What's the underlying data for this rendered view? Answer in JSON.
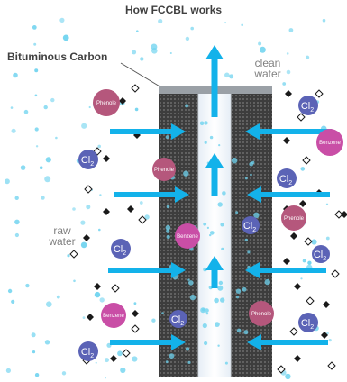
{
  "title": "How FCCBL works",
  "labels": {
    "bituminous_carbon": "Bituminous Carbon",
    "clean_water_line1": "clean",
    "clean_water_line2": "water",
    "raw_water_line1": "raw",
    "raw_water_line2": "water"
  },
  "molecules": {
    "phenol": "Phenole",
    "benzene": "Benzene",
    "chlorine": "Cl",
    "chlorine_subscript": "2"
  },
  "colors": {
    "arrow": "#13b2ea",
    "carbon_block": "#3d3d3d",
    "phenol_bubble": "#b5577c",
    "benzene_bubble": "#c94ea6",
    "chlorine_bubble": "#5b63b6",
    "water_droplet": "#6fd3ef",
    "impurity": "#1a1a1a"
  }
}
